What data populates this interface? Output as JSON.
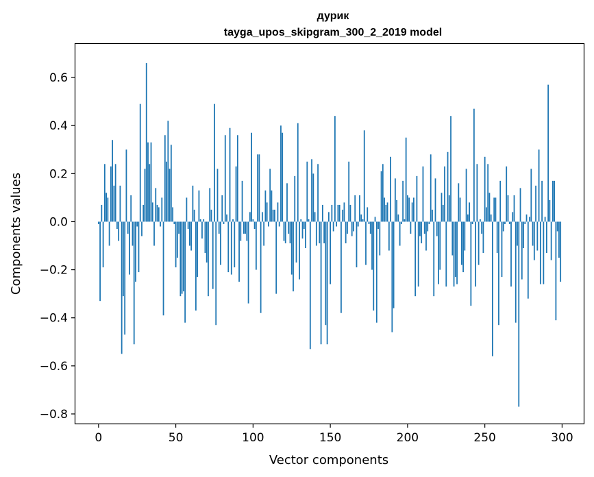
{
  "chart_data": {
    "type": "bar",
    "title": "дурик",
    "subtitle": "tayga_upos_skipgram_300_2_2019 model",
    "xlabel": "Vector components",
    "ylabel": "Components values",
    "xlim": [
      -15,
      314
    ],
    "ylim": [
      -0.84,
      0.74
    ],
    "xticks": [
      0,
      50,
      100,
      150,
      200,
      250,
      300
    ],
    "xtick_labels": [
      "0",
      "50",
      "100",
      "150",
      "200",
      "250",
      "300"
    ],
    "yticks": [
      -0.8,
      -0.6,
      -0.4,
      -0.2,
      0.0,
      0.2,
      0.4,
      0.6
    ],
    "ytick_labels": [
      "−0.8",
      "−0.6",
      "−0.4",
      "−0.2",
      "0.0",
      "0.2",
      "0.4",
      "0.6"
    ],
    "grid": false,
    "bar_color": "#1f77b4",
    "x_start": 0,
    "values": [
      -0.01,
      -0.33,
      0.07,
      -0.19,
      0.24,
      0.12,
      0.1,
      -0.1,
      0.23,
      0.34,
      0.15,
      0.24,
      -0.03,
      -0.08,
      0.15,
      -0.55,
      -0.31,
      -0.47,
      0.3,
      -0.05,
      -0.22,
      0.11,
      -0.1,
      -0.51,
      -0.25,
      -0.02,
      -0.21,
      0.49,
      -0.06,
      0.07,
      0.22,
      0.66,
      0.33,
      0.24,
      0.33,
      0.08,
      -0.1,
      0.14,
      0.07,
      0.06,
      -0.02,
      0.1,
      -0.39,
      0.36,
      0.25,
      0.42,
      0.22,
      0.32,
      0.06,
      -0.01,
      -0.19,
      -0.15,
      -0.05,
      -0.31,
      -0.3,
      -0.29,
      -0.42,
      0.1,
      -0.03,
      -0.1,
      -0.12,
      0.15,
      0.05,
      -0.37,
      -0.23,
      0.13,
      0.01,
      -0.07,
      0.01,
      -0.13,
      -0.17,
      -0.31,
      0.14,
      0.05,
      -0.28,
      0.49,
      -0.43,
      0.22,
      -0.05,
      -0.18,
      0.11,
      -0.01,
      0.36,
      0.03,
      -0.21,
      0.39,
      -0.22,
      0.01,
      -0.19,
      0.23,
      0.36,
      -0.25,
      -0.08,
      0.17,
      -0.05,
      -0.05,
      -0.08,
      -0.34,
      0.04,
      0.37,
      0.01,
      -0.03,
      -0.2,
      0.28,
      0.28,
      -0.38,
      0.04,
      -0.1,
      0.13,
      0.08,
      -0.02,
      0.22,
      0.13,
      0.05,
      0.05,
      -0.3,
      0.08,
      -0.02,
      0.4,
      0.37,
      -0.08,
      -0.09,
      0.16,
      -0.05,
      -0.09,
      -0.22,
      -0.29,
      0.19,
      -0.17,
      0.41,
      -0.24,
      0.01,
      -0.07,
      -0.03,
      -0.11,
      0.25,
      0.01,
      -0.53,
      0.26,
      0.2,
      0.04,
      -0.1,
      0.24,
      -0.09,
      -0.51,
      0.07,
      -0.09,
      -0.43,
      -0.51,
      0.04,
      -0.26,
      0.07,
      -0.04,
      0.44,
      -0.02,
      0.07,
      0.07,
      -0.38,
      0.05,
      0.08,
      -0.09,
      -0.05,
      0.25,
      0.07,
      -0.06,
      -0.04,
      0.11,
      -0.19,
      -0.02,
      0.11,
      0.03,
      0.01,
      0.38,
      -0.18,
      0.06,
      -0.01,
      -0.05,
      -0.2,
      -0.37,
      0.02,
      -0.42,
      -0.03,
      -0.14,
      0.21,
      0.24,
      0.1,
      0.07,
      0.08,
      -0.12,
      0.27,
      -0.46,
      -0.36,
      0.18,
      0.09,
      0.03,
      -0.1,
      -0.01,
      0.17,
      0.01,
      0.35,
      0.11,
      0.1,
      -0.05,
      0.08,
      0.1,
      -0.31,
      0.19,
      -0.27,
      -0.06,
      -0.09,
      0.23,
      -0.05,
      -0.12,
      -0.04,
      -0.01,
      0.28,
      0.05,
      -0.31,
      0.18,
      -0.06,
      -0.26,
      -0.2,
      0.12,
      0.07,
      0.23,
      -0.27,
      0.29,
      0.11,
      0.44,
      -0.14,
      -0.27,
      -0.23,
      -0.26,
      0.16,
      0.1,
      -0.18,
      -0.21,
      -0.12,
      0.22,
      0.03,
      0.08,
      -0.35,
      -0.01,
      0.47,
      -0.27,
      0.24,
      -0.18,
      0.01,
      -0.05,
      -0.13,
      0.27,
      0.06,
      0.24,
      0.12,
      0.03,
      -0.56,
      0.1,
      0.1,
      -0.13,
      -0.43,
      0.17,
      -0.23,
      -0.04,
      -0.01,
      0.23,
      0.11,
      -0.01,
      -0.27,
      0.04,
      0.11,
      -0.42,
      -0.1,
      -0.77,
      0.14,
      -0.24,
      -0.11,
      -0.01,
      0.03,
      -0.32,
      0.02,
      0.22,
      -0.1,
      -0.16,
      0.15,
      -0.12,
      0.3,
      -0.26,
      0.17,
      -0.26,
      0.02,
      -0.13,
      0.57,
      0.09,
      -0.16,
      0.17,
      0.17,
      -0.41,
      -0.04,
      -0.15,
      -0.25
    ]
  }
}
